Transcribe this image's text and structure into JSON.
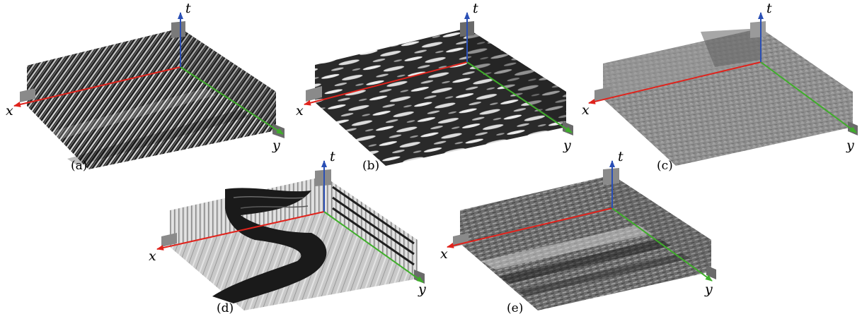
{
  "axes": {
    "x": "x",
    "y": "y",
    "t": "t"
  },
  "colors": {
    "x_axis": "#e0231c",
    "y_axis": "#3fae2a",
    "t_axis": "#2a4fb5"
  },
  "panels": [
    {
      "label": "(a)",
      "texture": "striped-fine"
    },
    {
      "label": "(b)",
      "texture": "water-ripples"
    },
    {
      "label": "(c)",
      "texture": "gray-grain"
    },
    {
      "label": "(d)",
      "texture": "twisting-object"
    },
    {
      "label": "(e)",
      "texture": "grass-bands"
    }
  ]
}
